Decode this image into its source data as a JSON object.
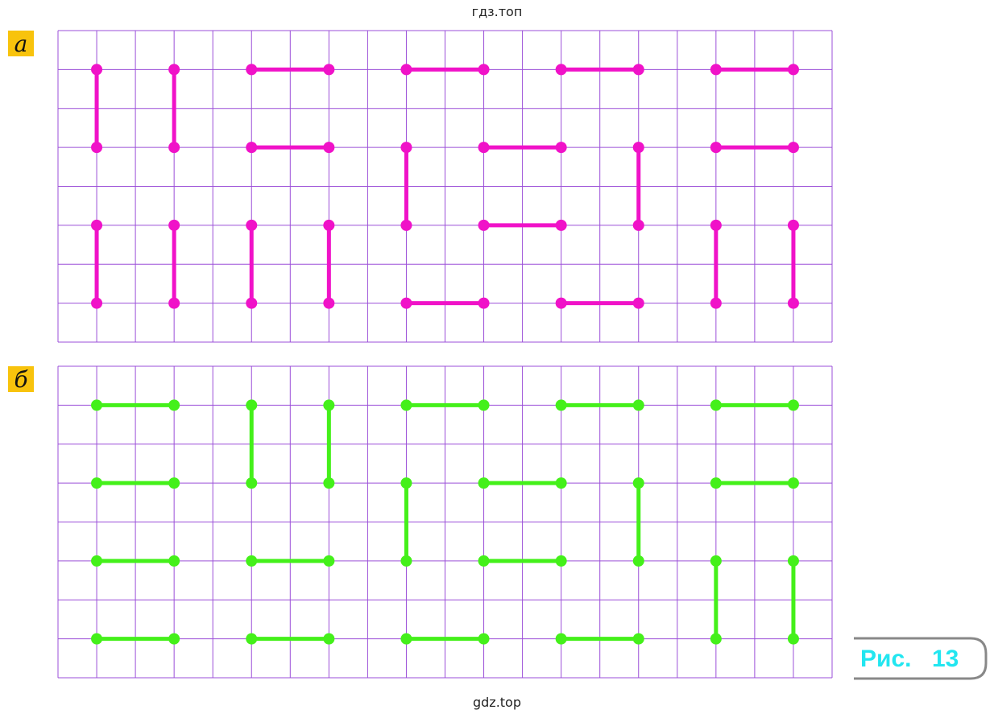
{
  "header": {
    "title": "гдз.топ"
  },
  "panels": [
    {
      "label": "а"
    },
    {
      "label": "б"
    }
  ],
  "figure": {
    "prefix": "Рис.",
    "number": "13"
  },
  "footer": {
    "text": "gdz.top"
  }
}
